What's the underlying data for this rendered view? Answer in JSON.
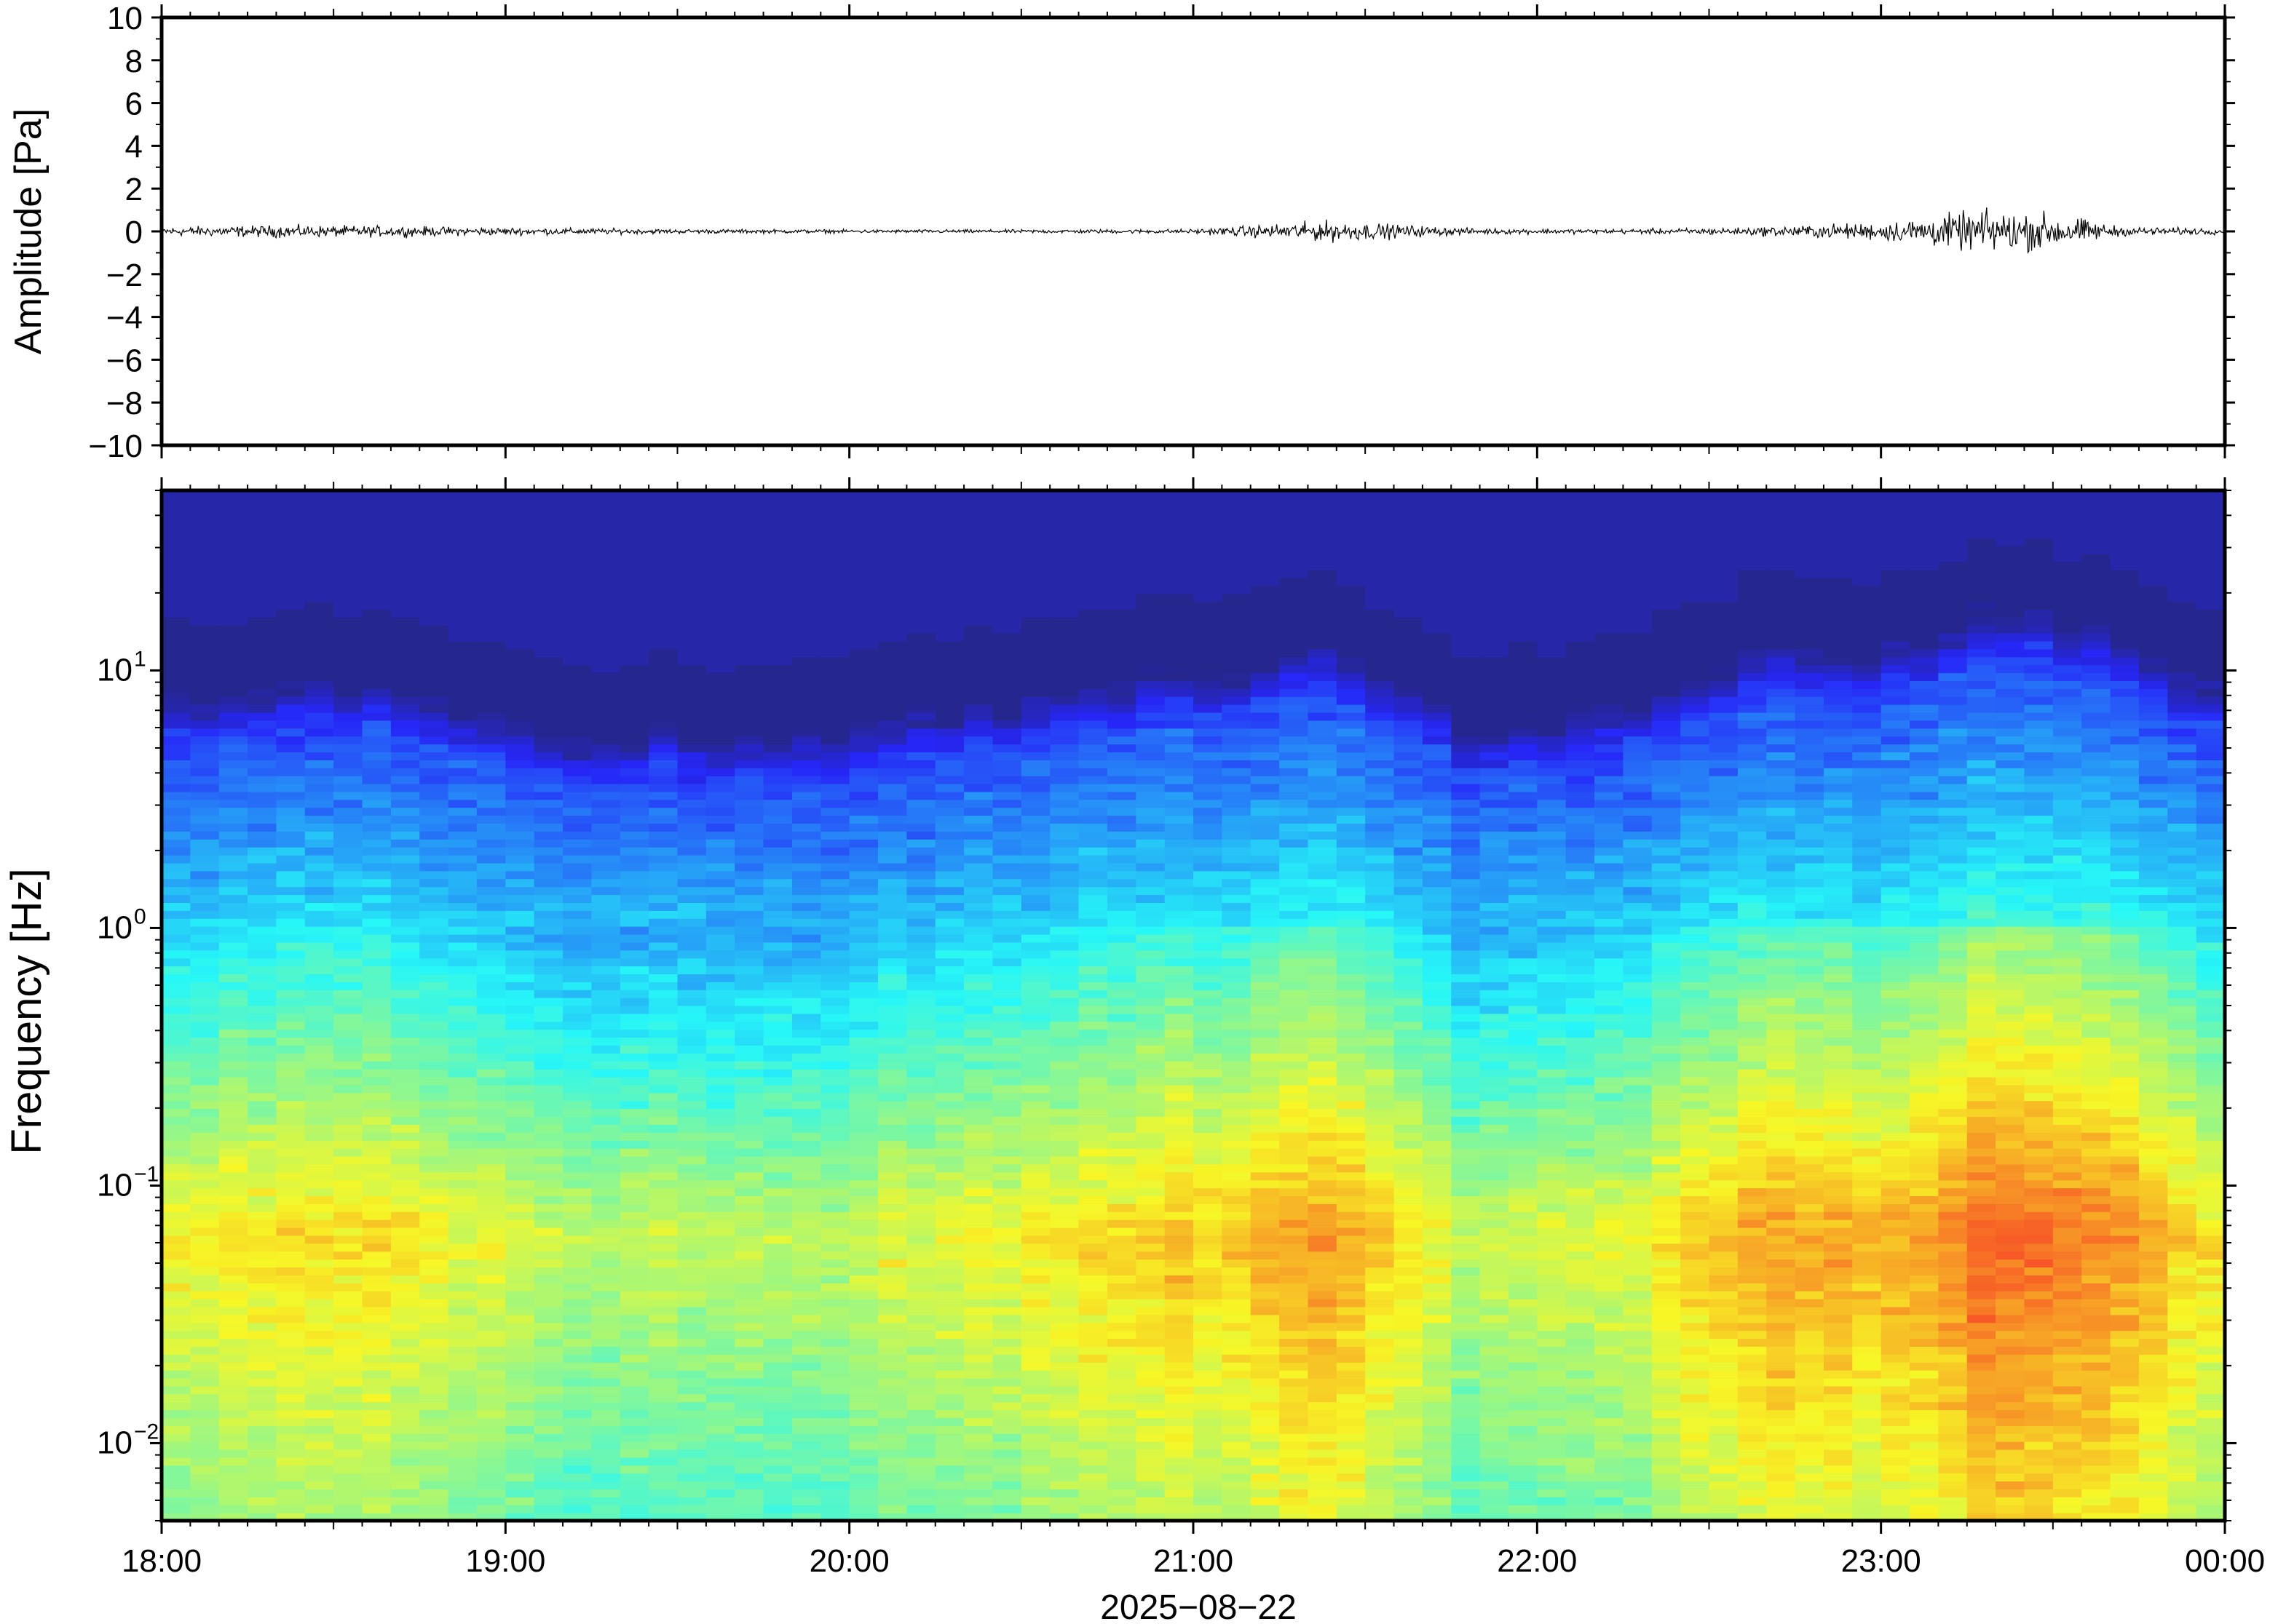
{
  "chart_data": [
    {
      "type": "line",
      "panel": "waveform",
      "ylabel": "Amplitude [Pa]",
      "ylim": [
        -10,
        10
      ],
      "y_ticks": [
        -10,
        -8,
        -6,
        -4,
        -2,
        0,
        2,
        4,
        6,
        8,
        10
      ],
      "y_tick_labels": [
        "−10",
        "−8",
        "−6",
        "−4",
        "−2",
        "0",
        "2",
        "4",
        "6",
        "8",
        "10"
      ],
      "xlim_hours": [
        18,
        24
      ],
      "series": [
        {
          "color": "#000000",
          "envelope": [
            {
              "t": 18.0,
              "amp": 0.3
            },
            {
              "t": 18.33,
              "amp": 0.4
            },
            {
              "t": 18.67,
              "amp": 0.35
            },
            {
              "t": 19.0,
              "amp": 0.25
            },
            {
              "t": 19.5,
              "amp": 0.15
            },
            {
              "t": 20.0,
              "amp": 0.12
            },
            {
              "t": 20.5,
              "amp": 0.12
            },
            {
              "t": 21.0,
              "amp": 0.15
            },
            {
              "t": 21.4,
              "amp": 0.7
            },
            {
              "t": 21.8,
              "amp": 0.2
            },
            {
              "t": 22.2,
              "amp": 0.15
            },
            {
              "t": 22.6,
              "amp": 0.25
            },
            {
              "t": 23.0,
              "amp": 0.6
            },
            {
              "t": 23.3,
              "amp": 1.4
            },
            {
              "t": 23.5,
              "amp": 1.2
            },
            {
              "t": 23.7,
              "amp": 0.3
            },
            {
              "t": 24.0,
              "amp": 0.2
            }
          ]
        }
      ]
    },
    {
      "type": "heatmap",
      "panel": "spectrogram",
      "ylabel": "Frequency [Hz]",
      "yscale": "log",
      "ylim": [
        0.005,
        50
      ],
      "y_ticks": [
        {
          "value": 0.01,
          "base": "10",
          "exp": "−2"
        },
        {
          "value": 0.1,
          "base": "10",
          "exp": "−1"
        },
        {
          "value": 1,
          "base": "10",
          "exp": "0"
        },
        {
          "value": 10,
          "base": "10",
          "exp": "1"
        }
      ],
      "xlim_hours": [
        18,
        24
      ],
      "x_tick_labels": [
        "18:00",
        "19:00",
        "20:00",
        "21:00",
        "22:00",
        "23:00",
        "00:00"
      ],
      "xlabel": "2025−08−22",
      "colormap": "jet",
      "bright_times": [
        {
          "t": 18.0,
          "level": 0.55
        },
        {
          "t": 18.5,
          "level": 0.65
        },
        {
          "t": 18.75,
          "level": 0.6
        },
        {
          "t": 19.2,
          "level": 0.4
        },
        {
          "t": 20.0,
          "level": 0.45
        },
        {
          "t": 20.7,
          "level": 0.65
        },
        {
          "t": 21.1,
          "level": 0.7
        },
        {
          "t": 21.4,
          "level": 0.8
        },
        {
          "t": 21.8,
          "level": 0.45
        },
        {
          "t": 22.2,
          "level": 0.5
        },
        {
          "t": 22.65,
          "level": 0.8
        },
        {
          "t": 23.0,
          "level": 0.75
        },
        {
          "t": 23.3,
          "level": 0.95
        },
        {
          "t": 23.5,
          "level": 0.92
        },
        {
          "t": 23.9,
          "level": 0.7
        },
        {
          "t": 24.0,
          "level": 0.6
        }
      ]
    }
  ]
}
